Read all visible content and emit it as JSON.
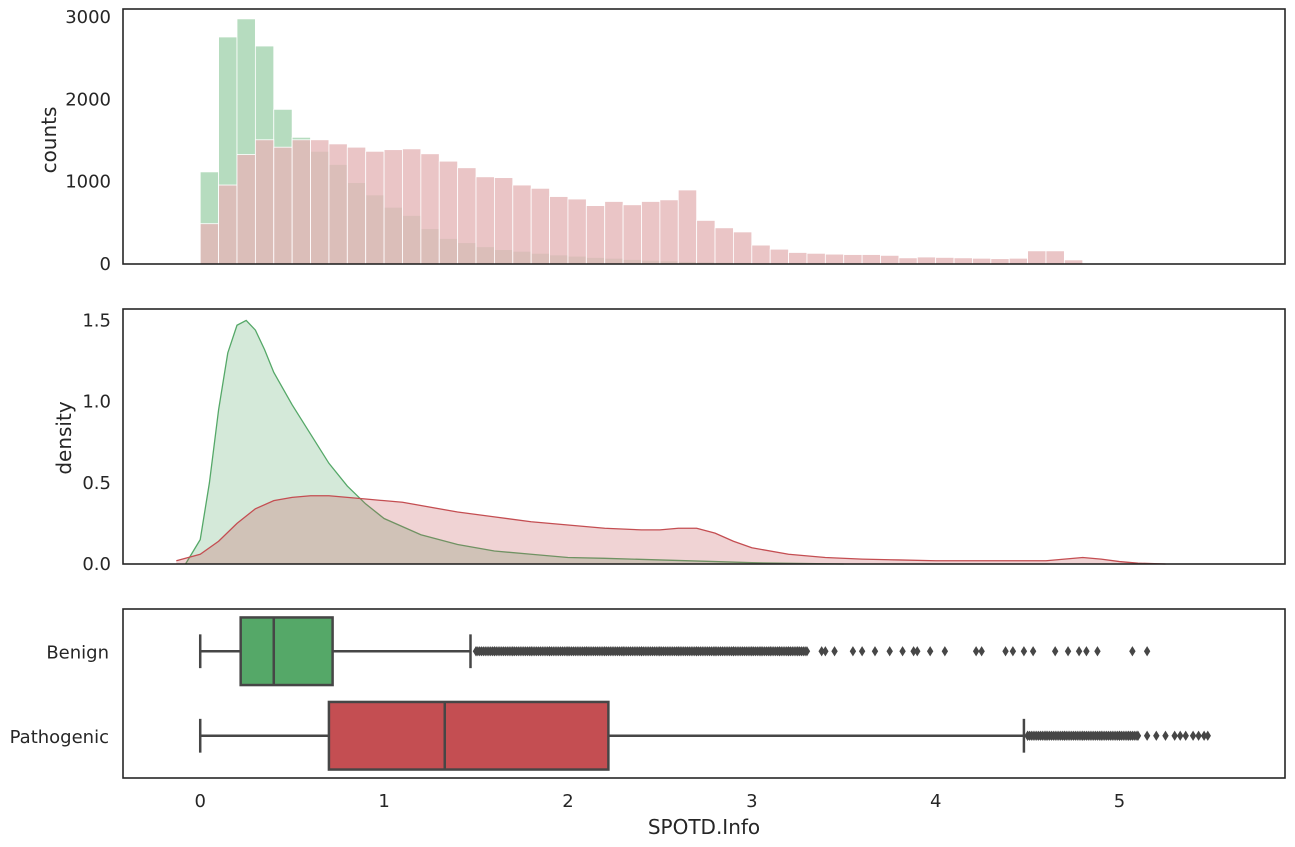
{
  "figure": {
    "xlabel": "SPOTD.Info"
  },
  "colors": {
    "benign": "#55a868",
    "pathogenic": "#c44e52",
    "benign_hist": "#b6dcbf",
    "pathogenic_hist": "#e5b6b8",
    "axis": "#262626",
    "box_line": "#464646"
  },
  "chart_data": [
    {
      "type": "histogram",
      "ylabel": "counts",
      "xlim": [
        -0.42,
        5.9
      ],
      "ylim": [
        0,
        3100
      ],
      "xticks": [],
      "yticks": [
        0,
        1000,
        2000,
        3000
      ],
      "bin_width": 0.1,
      "series": [
        {
          "name": "Benign",
          "color": "#55a868",
          "x_start": 0.0,
          "values": [
            1120,
            2760,
            2980,
            2650,
            1880,
            1540,
            1370,
            1210,
            990,
            840,
            690,
            590,
            430,
            310,
            260,
            210,
            175,
            155,
            130,
            110,
            95,
            80,
            70,
            55,
            45,
            38,
            30,
            25,
            20,
            18
          ]
        },
        {
          "name": "Pathogenic",
          "color": "#c44e52",
          "x_start": 0.0,
          "values": [
            490,
            960,
            1330,
            1510,
            1420,
            1510,
            1510,
            1460,
            1420,
            1370,
            1390,
            1400,
            1340,
            1250,
            1170,
            1060,
            1050,
            960,
            920,
            820,
            790,
            710,
            760,
            720,
            760,
            780,
            900,
            530,
            440,
            390,
            230,
            180,
            140,
            130,
            120,
            115,
            115,
            105,
            75,
            85,
            80,
            75,
            70,
            65,
            70,
            160,
            160,
            50
          ]
        }
      ]
    },
    {
      "type": "area",
      "ylabel": "density",
      "xlim": [
        -0.42,
        5.9
      ],
      "ylim": [
        0,
        1.57
      ],
      "xticks": [],
      "yticks": [
        0.0,
        0.5,
        1.0,
        1.5
      ],
      "series": [
        {
          "name": "Benign",
          "color": "#55a868",
          "x": [
            -0.08,
            0.0,
            0.05,
            0.1,
            0.15,
            0.2,
            0.25,
            0.3,
            0.35,
            0.4,
            0.5,
            0.6,
            0.7,
            0.8,
            0.9,
            1.0,
            1.2,
            1.4,
            1.6,
            1.8,
            2.0,
            2.2,
            2.5,
            2.8,
            3.0,
            3.5
          ],
          "y": [
            0.0,
            0.15,
            0.5,
            0.95,
            1.3,
            1.47,
            1.5,
            1.44,
            1.32,
            1.18,
            0.98,
            0.8,
            0.62,
            0.48,
            0.37,
            0.28,
            0.18,
            0.12,
            0.08,
            0.06,
            0.04,
            0.035,
            0.025,
            0.015,
            0.008,
            0.0
          ]
        },
        {
          "name": "Pathogenic",
          "color": "#c44e52",
          "x": [
            -0.13,
            0.0,
            0.1,
            0.2,
            0.3,
            0.4,
            0.5,
            0.6,
            0.7,
            0.8,
            0.9,
            1.0,
            1.1,
            1.2,
            1.4,
            1.6,
            1.8,
            2.0,
            2.2,
            2.4,
            2.5,
            2.6,
            2.7,
            2.8,
            2.9,
            3.0,
            3.2,
            3.4,
            3.6,
            3.8,
            4.0,
            4.2,
            4.4,
            4.6,
            4.7,
            4.8,
            4.9,
            5.0,
            5.1,
            5.25
          ],
          "y": [
            0.02,
            0.06,
            0.14,
            0.25,
            0.34,
            0.39,
            0.41,
            0.42,
            0.42,
            0.41,
            0.4,
            0.39,
            0.38,
            0.36,
            0.32,
            0.29,
            0.26,
            0.24,
            0.22,
            0.21,
            0.21,
            0.22,
            0.22,
            0.19,
            0.14,
            0.1,
            0.06,
            0.04,
            0.03,
            0.025,
            0.02,
            0.02,
            0.02,
            0.02,
            0.03,
            0.04,
            0.03,
            0.015,
            0.005,
            0.0
          ]
        }
      ]
    },
    {
      "type": "box",
      "xlabel": "SPOTD.Info",
      "xlim": [
        -0.42,
        5.9
      ],
      "xticks": [
        0,
        1,
        2,
        3,
        4,
        5
      ],
      "categories": [
        "Benign",
        "Pathogenic"
      ],
      "boxes": [
        {
          "name": "Benign",
          "color": "#55a868",
          "whisker_low": 0.0,
          "q1": 0.22,
          "median": 0.4,
          "q3": 0.72,
          "whisker_high": 1.47,
          "outliers": [
            1.5,
            1.6,
            1.7,
            1.8,
            1.9,
            2.0,
            2.1,
            2.2,
            2.3,
            2.4,
            2.5,
            2.6,
            2.7,
            2.8,
            2.9,
            3.0,
            3.05,
            3.1,
            3.15,
            3.2,
            3.25,
            3.38,
            3.4,
            3.45,
            3.55,
            3.6,
            3.67,
            3.75,
            3.82,
            3.88,
            3.9,
            3.97,
            4.05,
            4.22,
            4.25,
            4.38,
            4.42,
            4.48,
            4.53,
            4.65,
            4.72,
            4.78,
            4.82,
            4.88,
            5.07,
            5.15
          ],
          "outlier_dense_range": [
            1.5,
            3.3
          ]
        },
        {
          "name": "Pathogenic",
          "color": "#c44e52",
          "whisker_low": 0.0,
          "q1": 0.7,
          "median": 1.33,
          "q3": 2.22,
          "whisker_high": 4.48,
          "outliers": [
            4.5,
            4.6,
            4.7,
            4.8,
            4.9,
            5.0,
            5.05,
            5.1,
            5.15,
            5.2,
            5.25,
            5.3,
            5.33,
            5.36,
            5.4,
            5.43,
            5.46,
            5.48
          ],
          "outlier_dense_range": [
            4.5,
            5.1
          ]
        }
      ]
    }
  ]
}
